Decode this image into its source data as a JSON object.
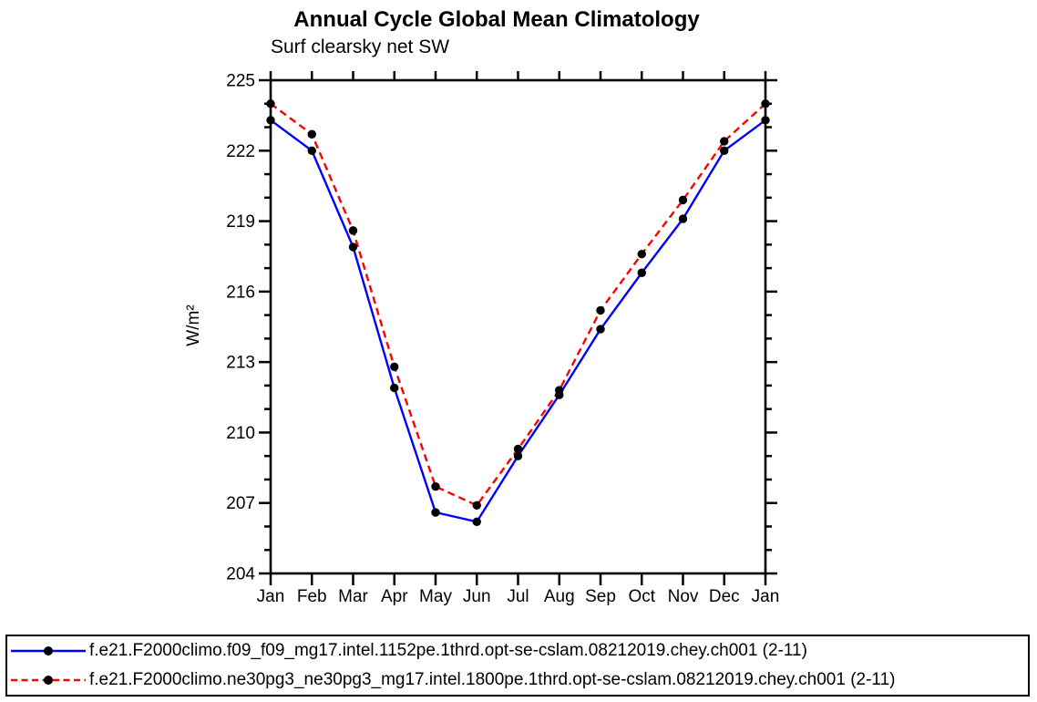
{
  "chart_data": {
    "type": "line",
    "title": "Annual Cycle Global Mean Climatology",
    "subtitle": "Surf clearsky net SW",
    "ylabel": "W/m²",
    "xlabel": "",
    "categories": [
      "Jan",
      "Feb",
      "Mar",
      "Apr",
      "May",
      "Jun",
      "Jul",
      "Aug",
      "Sep",
      "Oct",
      "Nov",
      "Dec",
      "Jan"
    ],
    "ylim": [
      204,
      225
    ],
    "yticks_labeled": [
      204,
      207,
      210,
      213,
      216,
      219,
      222,
      225
    ],
    "ytick_minor_step": 1,
    "grid": false,
    "legend_position": "bottom-box",
    "series": [
      {
        "name": "f.e21.F2000climo.f09_f09_mg17.intel.1152pe.1thrd.opt-se-cslam.08212019.chey.ch001 (2-11)",
        "color": "#0000ff",
        "line_style": "solid",
        "marker": "filled-circle",
        "marker_color": "#000000",
        "values": [
          223.3,
          222.0,
          217.9,
          211.9,
          206.6,
          206.2,
          209.0,
          211.6,
          214.4,
          216.8,
          219.1,
          222.0,
          223.3
        ]
      },
      {
        "name": "f.e21.F2000climo.ne30pg3_ne30pg3_mg17.intel.1800pe.1thrd.opt-se-cslam.08212019.chey.ch001 (2-11)",
        "color": "#ff0000",
        "line_style": "dashed",
        "marker": "filled-circle",
        "marker_color": "#000000",
        "values": [
          224.0,
          222.7,
          218.6,
          212.8,
          207.7,
          206.9,
          209.3,
          211.8,
          215.2,
          217.6,
          219.9,
          222.4,
          224.0
        ]
      }
    ]
  }
}
